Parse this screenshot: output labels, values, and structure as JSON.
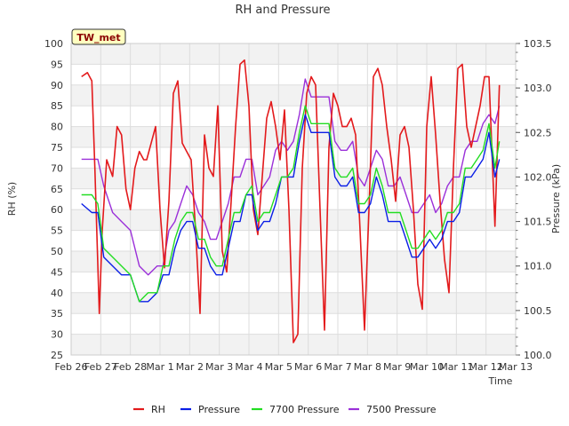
{
  "chart_data": {
    "type": "line",
    "title": "RH and Pressure",
    "site_label": "TW_met",
    "xlabel": "Time",
    "ylabel_left": "RH (%)",
    "ylabel_right": "Pressure (kPa)",
    "x_ticks": [
      "Feb 26",
      "Feb 27",
      "Feb 28",
      "Mar 1",
      "Mar 2",
      "Mar 3",
      "Mar 4",
      "Mar 5",
      "Mar 6",
      "Mar 7",
      "Mar 8",
      "Mar 9",
      "Mar 10",
      "Mar 11",
      "Mar 12",
      "Mar 13"
    ],
    "xlim": [
      0,
      15
    ],
    "ylim_left": [
      25,
      100
    ],
    "ylim_right": [
      100.0,
      103.5
    ],
    "y_ticks_left": [
      25,
      30,
      35,
      40,
      45,
      50,
      55,
      60,
      65,
      70,
      75,
      80,
      85,
      90,
      95,
      100
    ],
    "y_ticks_right": [
      100.0,
      100.5,
      101.0,
      101.5,
      102.0,
      102.5,
      103.0,
      103.5
    ],
    "grid": true,
    "legend_position": "bottom",
    "series": [
      {
        "name": "RH",
        "axis": "left",
        "color": "#e31a1c",
        "x": [
          0.35,
          0.55,
          0.7,
          0.8,
          0.95,
          1.05,
          1.2,
          1.4,
          1.55,
          1.7,
          1.85,
          2.0,
          2.15,
          2.3,
          2.45,
          2.55,
          2.7,
          2.85,
          3.0,
          3.15,
          3.3,
          3.45,
          3.6,
          3.75,
          3.9,
          4.05,
          4.2,
          4.35,
          4.5,
          4.65,
          4.8,
          4.95,
          5.1,
          5.25,
          5.4,
          5.55,
          5.7,
          5.85,
          6.0,
          6.15,
          6.3,
          6.45,
          6.6,
          6.75,
          6.9,
          7.05,
          7.2,
          7.35,
          7.5,
          7.65,
          7.8,
          7.95,
          8.1,
          8.25,
          8.4,
          8.55,
          8.7,
          8.85,
          9.0,
          9.15,
          9.3,
          9.45,
          9.6,
          9.75,
          9.9,
          10.05,
          10.2,
          10.35,
          10.5,
          10.65,
          10.8,
          10.95,
          11.1,
          11.25,
          11.4,
          11.55,
          11.7,
          11.85,
          12.0,
          12.15,
          12.3,
          12.45,
          12.6,
          12.75,
          12.9,
          13.05,
          13.2,
          13.35,
          13.5,
          13.65,
          13.8,
          13.95,
          14.1,
          14.3,
          14.45
        ],
        "y": [
          92,
          93,
          91,
          70,
          35,
          55,
          72,
          68,
          80,
          78,
          65,
          60,
          70,
          74,
          72,
          72,
          76,
          80,
          60,
          46,
          62,
          88,
          91,
          76,
          74,
          72,
          55,
          35,
          78,
          70,
          68,
          85,
          50,
          45,
          62,
          80,
          95,
          96,
          85,
          60,
          54,
          68,
          82,
          86,
          80,
          72,
          84,
          60,
          28,
          30,
          70,
          88,
          92,
          90,
          60,
          31,
          75,
          88,
          85,
          80,
          80,
          82,
          78,
          55,
          31,
          60,
          92,
          94,
          90,
          80,
          72,
          62,
          78,
          80,
          75,
          60,
          42,
          36,
          80,
          92,
          78,
          62,
          48,
          40,
          70,
          94,
          95,
          80,
          75,
          80,
          85,
          92,
          92,
          56,
          90
        ]
      },
      {
        "name": "Pressure",
        "axis": "right",
        "color": "#0a1ee6",
        "x": [
          0.35,
          0.7,
          0.9,
          1.1,
          1.4,
          1.7,
          2.0,
          2.3,
          2.6,
          2.9,
          3.1,
          3.3,
          3.5,
          3.7,
          3.9,
          4.1,
          4.3,
          4.5,
          4.7,
          4.9,
          5.1,
          5.3,
          5.5,
          5.7,
          5.9,
          6.1,
          6.3,
          6.5,
          6.7,
          6.9,
          7.1,
          7.3,
          7.5,
          7.7,
          7.9,
          8.1,
          8.3,
          8.5,
          8.7,
          8.9,
          9.1,
          9.3,
          9.5,
          9.7,
          9.9,
          10.1,
          10.3,
          10.5,
          10.7,
          10.9,
          11.1,
          11.3,
          11.5,
          11.7,
          11.9,
          12.1,
          12.3,
          12.5,
          12.7,
          12.9,
          13.1,
          13.3,
          13.5,
          13.7,
          13.9,
          14.1,
          14.3,
          14.45
        ],
        "y": [
          101.7,
          101.6,
          101.6,
          101.1,
          101.0,
          100.9,
          100.9,
          100.6,
          100.6,
          100.7,
          100.9,
          100.9,
          101.2,
          101.4,
          101.5,
          101.5,
          101.2,
          101.2,
          101.0,
          100.9,
          100.9,
          101.2,
          101.5,
          101.5,
          101.8,
          101.8,
          101.4,
          101.5,
          101.5,
          101.7,
          102.0,
          102.0,
          102.0,
          102.4,
          102.7,
          102.5,
          102.5,
          102.5,
          102.5,
          102.0,
          101.9,
          101.9,
          102.0,
          101.6,
          101.6,
          101.7,
          102.0,
          101.8,
          101.5,
          101.5,
          101.5,
          101.3,
          101.1,
          101.1,
          101.2,
          101.3,
          101.2,
          101.3,
          101.5,
          101.5,
          101.6,
          102.0,
          102.0,
          102.1,
          102.2,
          102.5,
          102.0,
          102.2
        ]
      },
      {
        "name": "7700 Pressure",
        "axis": "right",
        "color": "#22dd22",
        "x": [
          0.35,
          0.7,
          0.9,
          1.1,
          1.4,
          1.7,
          2.0,
          2.3,
          2.6,
          2.9,
          3.1,
          3.3,
          3.5,
          3.7,
          3.9,
          4.1,
          4.3,
          4.5,
          4.7,
          4.9,
          5.1,
          5.3,
          5.5,
          5.7,
          5.9,
          6.1,
          6.3,
          6.5,
          6.7,
          6.9,
          7.1,
          7.3,
          7.5,
          7.7,
          7.9,
          8.1,
          8.3,
          8.5,
          8.7,
          8.9,
          9.1,
          9.3,
          9.5,
          9.7,
          9.9,
          10.1,
          10.3,
          10.5,
          10.7,
          10.9,
          11.1,
          11.3,
          11.5,
          11.7,
          11.9,
          12.1,
          12.3,
          12.5,
          12.7,
          12.9,
          13.1,
          13.3,
          13.5,
          13.7,
          13.9,
          14.1,
          14.3,
          14.45
        ],
        "y": [
          101.8,
          101.8,
          101.7,
          101.2,
          101.1,
          101.0,
          100.9,
          100.6,
          100.7,
          100.7,
          101.0,
          101.0,
          101.3,
          101.5,
          101.6,
          101.6,
          101.3,
          101.3,
          101.1,
          101.0,
          101.0,
          101.3,
          101.6,
          101.6,
          101.8,
          101.9,
          101.5,
          101.6,
          101.6,
          101.8,
          102.0,
          102.0,
          102.1,
          102.5,
          102.8,
          102.6,
          102.6,
          102.6,
          102.6,
          102.1,
          102.0,
          102.0,
          102.1,
          101.7,
          101.7,
          101.8,
          102.1,
          101.9,
          101.6,
          101.6,
          101.6,
          101.4,
          101.2,
          101.2,
          101.3,
          101.4,
          101.3,
          101.4,
          101.6,
          101.6,
          101.7,
          102.1,
          102.1,
          102.2,
          102.3,
          102.6,
          102.1,
          102.4
        ]
      },
      {
        "name": "7500 Pressure",
        "axis": "right",
        "color": "#9b30d9",
        "x": [
          0.35,
          0.6,
          0.9,
          1.1,
          1.4,
          1.7,
          2.0,
          2.3,
          2.6,
          2.9,
          3.1,
          3.3,
          3.5,
          3.7,
          3.9,
          4.1,
          4.3,
          4.5,
          4.7,
          4.9,
          5.1,
          5.3,
          5.5,
          5.7,
          5.9,
          6.1,
          6.3,
          6.5,
          6.7,
          6.9,
          7.1,
          7.3,
          7.5,
          7.7,
          7.9,
          8.1,
          8.3,
          8.5,
          8.7,
          8.9,
          9.1,
          9.3,
          9.5,
          9.7,
          9.9,
          10.1,
          10.3,
          10.5,
          10.7,
          10.9,
          11.1,
          11.3,
          11.5,
          11.7,
          11.9,
          12.1,
          12.3,
          12.5,
          12.7,
          12.9,
          13.1,
          13.3,
          13.5,
          13.7,
          13.9,
          14.1,
          14.3,
          14.45
        ],
        "y": [
          102.2,
          102.2,
          102.2,
          101.9,
          101.6,
          101.5,
          101.4,
          101.0,
          100.9,
          101.0,
          101.0,
          101.4,
          101.5,
          101.7,
          101.9,
          101.8,
          101.6,
          101.5,
          101.3,
          101.3,
          101.5,
          101.7,
          102.0,
          102.0,
          102.2,
          102.2,
          101.8,
          101.9,
          102.0,
          102.3,
          102.4,
          102.3,
          102.4,
          102.7,
          103.1,
          102.9,
          102.9,
          102.9,
          102.9,
          102.4,
          102.3,
          102.3,
          102.4,
          102.0,
          101.9,
          102.1,
          102.3,
          102.2,
          101.9,
          101.9,
          102.0,
          101.8,
          101.6,
          101.6,
          101.7,
          101.8,
          101.6,
          101.7,
          101.9,
          102.0,
          102.0,
          102.3,
          102.4,
          102.4,
          102.6,
          102.7,
          102.6,
          102.8
        ]
      }
    ]
  }
}
